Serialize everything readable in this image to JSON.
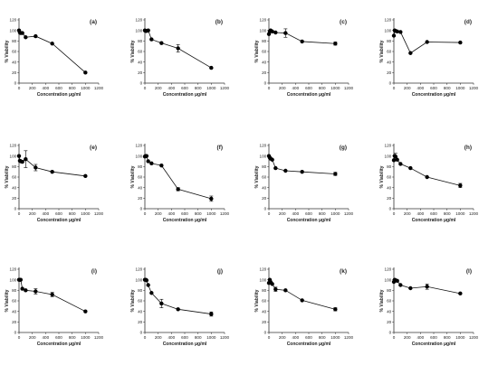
{
  "figure": {
    "xlabel": "Concentration μg/ml",
    "ylabel": "% Viability"
  },
  "chart_data": [
    {
      "type": "line",
      "panel": "(a)",
      "xlabel": "Concentration μg/ml",
      "ylabel": "% Viability",
      "xlim": [
        0,
        1200
      ],
      "ylim": [
        0,
        120
      ],
      "xticks": [
        0,
        200,
        400,
        600,
        800,
        1000,
        1200
      ],
      "yticks": [
        0,
        20,
        40,
        60,
        80,
        100,
        120
      ],
      "x": [
        0,
        12.5,
        25,
        50,
        100,
        250,
        500,
        1000
      ],
      "y": [
        100,
        96,
        95,
        95,
        87,
        89,
        75,
        20
      ],
      "err": [
        0,
        0,
        0,
        0,
        0,
        0,
        0,
        0
      ]
    },
    {
      "type": "line",
      "panel": "(b)",
      "xlabel": "Concentration μg/ml",
      "ylabel": "% Viability",
      "xlim": [
        0,
        1200
      ],
      "ylim": [
        0,
        120
      ],
      "xticks": [
        0,
        200,
        400,
        600,
        800,
        1000,
        1200
      ],
      "yticks": [
        0,
        20,
        40,
        60,
        80,
        100,
        120
      ],
      "x": [
        0,
        12.5,
        25,
        50,
        100,
        250,
        500,
        1000
      ],
      "y": [
        100,
        99,
        99,
        100,
        83,
        76,
        66,
        29
      ],
      "err": [
        0,
        0,
        0,
        0,
        0,
        0,
        7,
        0
      ]
    },
    {
      "type": "line",
      "panel": "(c)",
      "xlabel": "Concentration μg/ml",
      "ylabel": "% Viability",
      "xlim": [
        0,
        1200
      ],
      "ylim": [
        0,
        120
      ],
      "xticks": [
        0,
        200,
        400,
        600,
        800,
        1000,
        1200
      ],
      "yticks": [
        0,
        20,
        40,
        60,
        80,
        100,
        120
      ],
      "x": [
        0,
        12.5,
        25,
        50,
        100,
        250,
        500,
        1000
      ],
      "y": [
        93,
        98,
        100,
        98,
        96,
        95,
        79,
        75
      ],
      "err": [
        0,
        0,
        0,
        0,
        0,
        8,
        0,
        3
      ]
    },
    {
      "type": "line",
      "panel": "(d)",
      "xlabel": "Concentration μg/ml",
      "ylabel": "% Viability",
      "xlim": [
        0,
        1200
      ],
      "ylim": [
        0,
        120
      ],
      "xticks": [
        0,
        200,
        400,
        600,
        800,
        1000,
        1200
      ],
      "yticks": [
        0,
        20,
        40,
        60,
        80,
        100,
        120
      ],
      "x": [
        0,
        12.5,
        25,
        50,
        100,
        250,
        500,
        1000
      ],
      "y": [
        90,
        100,
        99,
        98,
        97,
        57,
        78,
        77
      ],
      "err": [
        0,
        0,
        0,
        0,
        0,
        0,
        0,
        0
      ]
    },
    {
      "type": "line",
      "panel": "(e)",
      "xlabel": "Concentration μg/ml",
      "ylabel": "% Viability",
      "xlim": [
        0,
        1200
      ],
      "ylim": [
        0,
        120
      ],
      "xticks": [
        0,
        200,
        400,
        600,
        800,
        1000,
        1200
      ],
      "yticks": [
        0,
        20,
        40,
        60,
        80,
        100,
        120
      ],
      "x": [
        0,
        12.5,
        25,
        50,
        100,
        250,
        500,
        1000
      ],
      "y": [
        100,
        91,
        90,
        89,
        94,
        78,
        70,
        62
      ],
      "err": [
        0,
        0,
        0,
        0,
        16,
        6,
        0,
        0
      ]
    },
    {
      "type": "line",
      "panel": "(f)",
      "xlabel": "Concentration μg/ml",
      "ylabel": "% Viability",
      "xlim": [
        0,
        1200
      ],
      "ylim": [
        0,
        120
      ],
      "xticks": [
        0,
        200,
        400,
        600,
        800,
        1000,
        1200
      ],
      "yticks": [
        0,
        20,
        40,
        60,
        80,
        100,
        120
      ],
      "x": [
        0,
        12.5,
        25,
        50,
        100,
        250,
        500,
        1000
      ],
      "y": [
        99,
        100,
        100,
        90,
        86,
        82,
        37,
        19
      ],
      "err": [
        0,
        0,
        0,
        0,
        0,
        0,
        3,
        5
      ]
    },
    {
      "type": "line",
      "panel": "(g)",
      "xlabel": "Concentration μg/ml",
      "ylabel": "% Viability",
      "xlim": [
        0,
        1200
      ],
      "ylim": [
        0,
        120
      ],
      "xticks": [
        0,
        200,
        400,
        600,
        800,
        1000,
        1200
      ],
      "yticks": [
        0,
        20,
        40,
        60,
        80,
        100,
        120
      ],
      "x": [
        0,
        12.5,
        25,
        50,
        100,
        250,
        500,
        1000
      ],
      "y": [
        100,
        97,
        95,
        93,
        77,
        72,
        70,
        66
      ],
      "err": [
        0,
        0,
        0,
        0,
        0,
        0,
        0,
        3
      ]
    },
    {
      "type": "line",
      "panel": "(h)",
      "xlabel": "Concentration μg/ml",
      "ylabel": "% Viability",
      "xlim": [
        0,
        1200
      ],
      "ylim": [
        0,
        120
      ],
      "xticks": [
        0,
        200,
        400,
        600,
        800,
        1000,
        1200
      ],
      "yticks": [
        0,
        20,
        40,
        60,
        80,
        100,
        120
      ],
      "x": [
        0,
        12.5,
        25,
        50,
        100,
        250,
        500,
        1000
      ],
      "y": [
        92,
        100,
        99,
        93,
        85,
        77,
        60,
        44
      ],
      "err": [
        0,
        0,
        6,
        0,
        0,
        0,
        0,
        4
      ]
    },
    {
      "type": "line",
      "panel": "(i)",
      "xlabel": "Concentration μg/ml",
      "ylabel": "% Viability",
      "xlim": [
        0,
        1200
      ],
      "ylim": [
        0,
        120
      ],
      "xticks": [
        0,
        200,
        400,
        600,
        800,
        1000,
        1200
      ],
      "yticks": [
        0,
        20,
        40,
        60,
        80,
        100,
        120
      ],
      "x": [
        0,
        12.5,
        25,
        50,
        100,
        250,
        500,
        1000
      ],
      "y": [
        100,
        100,
        100,
        83,
        80,
        78,
        72,
        40
      ],
      "err": [
        0,
        0,
        0,
        0,
        0,
        5,
        4,
        0
      ]
    },
    {
      "type": "line",
      "panel": "(j)",
      "xlabel": "Concentration μg/ml",
      "ylabel": "% Viability",
      "xlim": [
        0,
        1200
      ],
      "ylim": [
        0,
        120
      ],
      "xticks": [
        0,
        200,
        400,
        600,
        800,
        1000,
        1200
      ],
      "yticks": [
        0,
        20,
        40,
        60,
        80,
        100,
        120
      ],
      "x": [
        0,
        12.5,
        25,
        50,
        100,
        250,
        500,
        1000
      ],
      "y": [
        100,
        100,
        99,
        90,
        75,
        55,
        44,
        35
      ],
      "err": [
        0,
        0,
        0,
        0,
        0,
        8,
        0,
        4
      ]
    },
    {
      "type": "line",
      "panel": "(k)",
      "xlabel": "Concentration μg/ml",
      "ylabel": "% Viability",
      "xlim": [
        0,
        1200
      ],
      "ylim": [
        0,
        120
      ],
      "xticks": [
        0,
        200,
        400,
        600,
        800,
        1000,
        1200
      ],
      "yticks": [
        0,
        20,
        40,
        60,
        80,
        100,
        120
      ],
      "x": [
        0,
        12.5,
        25,
        50,
        100,
        250,
        500,
        1000
      ],
      "y": [
        94,
        100,
        96,
        92,
        82,
        80,
        61,
        44
      ],
      "err": [
        0,
        0,
        0,
        0,
        4,
        0,
        0,
        3
      ]
    },
    {
      "type": "line",
      "panel": "(l)",
      "xlabel": "Concentration μg/ml",
      "ylabel": "% Viability",
      "xlim": [
        0,
        1200
      ],
      "ylim": [
        0,
        120
      ],
      "xticks": [
        0,
        200,
        400,
        600,
        800,
        1000,
        1200
      ],
      "yticks": [
        0,
        20,
        40,
        60,
        80,
        100,
        120
      ],
      "x": [
        0,
        12.5,
        25,
        50,
        100,
        250,
        500,
        1000
      ],
      "y": [
        96,
        100,
        99,
        98,
        90,
        84,
        87,
        74
      ],
      "err": [
        0,
        0,
        0,
        0,
        0,
        0,
        5,
        0
      ]
    }
  ]
}
